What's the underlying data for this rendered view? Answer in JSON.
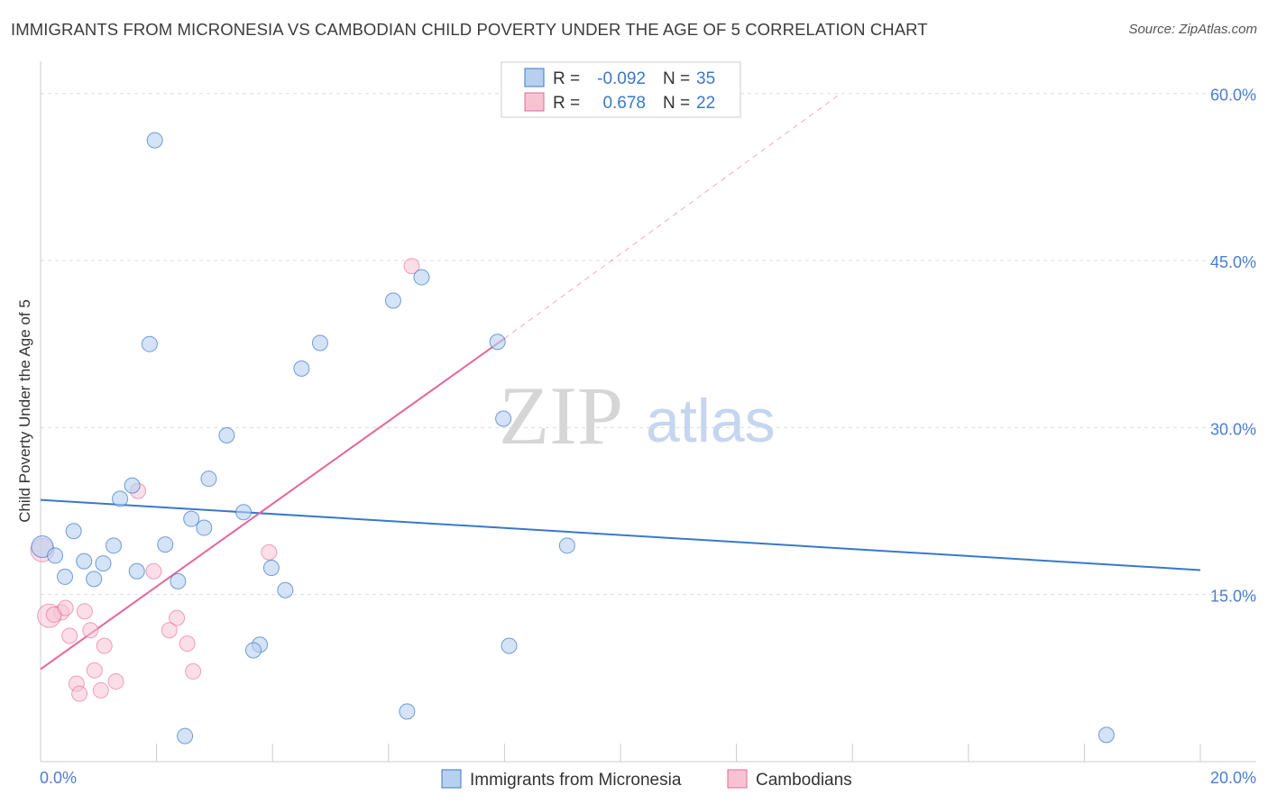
{
  "title": "IMMIGRANTS FROM MICRONESIA VS CAMBODIAN CHILD POVERTY UNDER THE AGE OF 5 CORRELATION CHART",
  "source": "Source: ZipAtlas.com",
  "watermark": {
    "zip": "ZIP",
    "atlas": "atlas"
  },
  "colors": {
    "blue": "#3a78c9",
    "blue_fill": "#b8d0f0",
    "pink": "#e4679a",
    "pink_fill": "#f7c3d3",
    "grid": "#dddddd",
    "tick_text": "#4a7fcf"
  },
  "chart_data": {
    "type": "scatter",
    "title": "IMMIGRANTS FROM MICRONESIA VS CAMBODIAN CHILD POVERTY UNDER THE AGE OF 5 CORRELATION CHART",
    "xlabel": "",
    "ylabel": "Child Poverty Under the Age of 5",
    "xlim": [
      0,
      20
    ],
    "ylim": [
      0,
      62
    ],
    "x_tick_labels": [
      "0.0%",
      "20.0%"
    ],
    "y_ticks": [
      15,
      30,
      45,
      60
    ],
    "y_tick_labels": [
      "15.0%",
      "30.0%",
      "45.0%",
      "60.0%"
    ],
    "legend_stats": [
      {
        "r_label": "R =",
        "r_value": "-0.092",
        "n_label": "N =",
        "n_value": "35"
      },
      {
        "r_label": "R =",
        "r_value": " 0.678",
        "n_label": "N =",
        "n_value": "22"
      }
    ],
    "series": [
      {
        "name": "Immigrants from Micronesia",
        "color": "#3a78c9",
        "trend": {
          "x": [
            0,
            20
          ],
          "y": [
            23.5,
            17.2
          ]
        },
        "points": [
          {
            "x": 1.97,
            "y": 55.8
          },
          {
            "x": 1.88,
            "y": 37.5
          },
          {
            "x": 3.21,
            "y": 29.3
          },
          {
            "x": 2.9,
            "y": 25.4
          },
          {
            "x": 1.58,
            "y": 24.8
          },
          {
            "x": 1.37,
            "y": 23.6
          },
          {
            "x": 3.5,
            "y": 22.4
          },
          {
            "x": 2.6,
            "y": 21.8
          },
          {
            "x": 2.82,
            "y": 21.0
          },
          {
            "x": 0.57,
            "y": 20.7
          },
          {
            "x": 0.03,
            "y": 19.3
          },
          {
            "x": 0.25,
            "y": 18.5
          },
          {
            "x": 1.26,
            "y": 19.4
          },
          {
            "x": 2.15,
            "y": 19.5
          },
          {
            "x": 0.75,
            "y": 18.0
          },
          {
            "x": 1.08,
            "y": 17.8
          },
          {
            "x": 1.66,
            "y": 17.1
          },
          {
            "x": 0.42,
            "y": 16.6
          },
          {
            "x": 0.92,
            "y": 16.4
          },
          {
            "x": 2.37,
            "y": 16.2
          },
          {
            "x": 3.98,
            "y": 17.4
          },
          {
            "x": 4.22,
            "y": 15.4
          },
          {
            "x": 4.5,
            "y": 35.3
          },
          {
            "x": 4.82,
            "y": 37.6
          },
          {
            "x": 6.08,
            "y": 41.4
          },
          {
            "x": 6.57,
            "y": 43.5
          },
          {
            "x": 7.88,
            "y": 37.7
          },
          {
            "x": 7.98,
            "y": 30.8
          },
          {
            "x": 3.78,
            "y": 10.5
          },
          {
            "x": 3.67,
            "y": 10.0
          },
          {
            "x": 8.08,
            "y": 10.4
          },
          {
            "x": 9.08,
            "y": 19.4
          },
          {
            "x": 6.32,
            "y": 4.5
          },
          {
            "x": 2.49,
            "y": 2.3
          },
          {
            "x": 18.38,
            "y": 2.4
          }
        ]
      },
      {
        "name": "Cambodians",
        "color": "#e4679a",
        "trend": {
          "x": [
            0,
            8.0
          ],
          "y": [
            8.3,
            38.0
          ]
        },
        "trend_ext": {
          "x": [
            8.0,
            13.8
          ],
          "y": [
            38.0,
            60.0
          ]
        },
        "points": [
          {
            "x": 6.4,
            "y": 44.5
          },
          {
            "x": 1.68,
            "y": 24.3
          },
          {
            "x": 3.94,
            "y": 18.8
          },
          {
            "x": 1.95,
            "y": 17.1
          },
          {
            "x": 0.03,
            "y": 19.0
          },
          {
            "x": 0.36,
            "y": 13.4
          },
          {
            "x": 0.15,
            "y": 13.1
          },
          {
            "x": 0.23,
            "y": 13.2
          },
          {
            "x": 0.76,
            "y": 13.5
          },
          {
            "x": 2.35,
            "y": 12.9
          },
          {
            "x": 0.86,
            "y": 11.8
          },
          {
            "x": 2.22,
            "y": 11.8
          },
          {
            "x": 0.5,
            "y": 11.3
          },
          {
            "x": 2.53,
            "y": 10.6
          },
          {
            "x": 1.1,
            "y": 10.4
          },
          {
            "x": 0.93,
            "y": 8.2
          },
          {
            "x": 2.63,
            "y": 8.1
          },
          {
            "x": 1.3,
            "y": 7.2
          },
          {
            "x": 0.62,
            "y": 7.0
          },
          {
            "x": 1.04,
            "y": 6.4
          },
          {
            "x": 0.67,
            "y": 6.1
          },
          {
            "x": 0.43,
            "y": 13.8
          }
        ]
      }
    ],
    "legend": [
      "Immigrants from Micronesia",
      "Cambodians"
    ],
    "legend_position": "bottom"
  }
}
